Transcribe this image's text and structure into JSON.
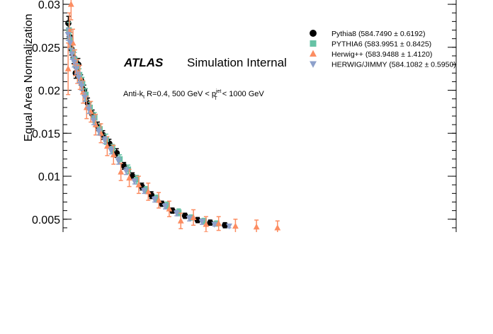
{
  "chart_data": {
    "type": "scatter",
    "title": "",
    "experiment": "ATLAS",
    "experiment_status": "Simulation Internal",
    "selection_label": {
      "main": "Anti-k",
      "main_sub": "t",
      "mid": " R=0.4, 500 GeV < p",
      "p_sup": "jet",
      "p_sub": "T",
      "tail": " < 1000 GeV"
    },
    "xlabel": "",
    "ylabel": "Equal Area Normalization",
    "ylim": [
      0.0035,
      0.0305
    ],
    "y_ticks": [
      0.005,
      0.01,
      0.015,
      0.02,
      0.025,
      0.03
    ],
    "y_tick_labels": [
      "0.005",
      "0.01",
      "0.015",
      "0.02",
      "0.025",
      "0.03"
    ],
    "legend_position": "top-right",
    "legend": [
      {
        "label": "Pythia8 (584.7490 ± 0.6192)",
        "marker": "circle",
        "color": "#000000"
      },
      {
        "label": "PYTHIA6 (583.9951 ± 0.8425)",
        "marker": "square",
        "color": "#66c2a5"
      },
      {
        "label": "Herwig++ (583.9488 ± 1.4120)",
        "marker": "triangle-up",
        "color": "#fc8d62"
      },
      {
        "label": "HERWIG/JIMMY (584.1082 ± 0.5950)",
        "marker": "triangle-down",
        "color": "#8da0cb"
      }
    ],
    "series": [
      {
        "name": "Pythia8 (584.7490 ± 0.6192)",
        "color": "#000000",
        "marker": "circle",
        "x": [
          0.5,
          1.2,
          2.0,
          3.0,
          4.0,
          5.2,
          6.5,
          8.0,
          9.8,
          12.0,
          14.5,
          17.0,
          20.0,
          23.5,
          27.0,
          31.0,
          35.5,
          40.0,
          45.0,
          50.0,
          56.0,
          62.0,
          68.0,
          75.0
        ],
        "y": [
          0.0278,
          0.0262,
          0.0248,
          0.0238,
          0.022,
          0.023,
          0.0212,
          0.02,
          0.0185,
          0.0172,
          0.0158,
          0.0148,
          0.0138,
          0.0127,
          0.0112,
          0.01,
          0.0088,
          0.0078,
          0.0068,
          0.006,
          0.0054,
          0.0049,
          0.0046,
          0.0043
        ],
        "err": [
          0.0008,
          0.0008,
          0.0007,
          0.0007,
          0.0006,
          0.0007,
          0.0006,
          0.0006,
          0.0006,
          0.0005,
          0.0005,
          0.0005,
          0.0005,
          0.0005,
          0.0004,
          0.0004,
          0.0004,
          0.0004,
          0.0003,
          0.0003,
          0.0003,
          0.0003,
          0.0003,
          0.0003
        ]
      },
      {
        "name": "PYTHIA6 (583.9951 ± 0.8425)",
        "color": "#66c2a5",
        "marker": "square",
        "x": [
          0.8,
          1.6,
          2.5,
          3.5,
          4.6,
          5.8,
          7.2,
          8.8,
          10.8,
          13.0,
          15.5,
          18.5,
          21.5,
          25.0,
          29.0,
          33.0,
          37.5,
          42.5,
          47.5,
          53.0,
          59.0,
          65.0,
          71.0
        ],
        "y": [
          0.027,
          0.0258,
          0.0245,
          0.0236,
          0.0228,
          0.0218,
          0.0208,
          0.0195,
          0.018,
          0.0168,
          0.0155,
          0.0143,
          0.0132,
          0.012,
          0.0108,
          0.0096,
          0.0084,
          0.0074,
          0.0066,
          0.0058,
          0.0052,
          0.0048,
          0.0045
        ],
        "err": [
          0.0009,
          0.0009,
          0.0008,
          0.0008,
          0.0007,
          0.0007,
          0.0007,
          0.0007,
          0.0006,
          0.0006,
          0.0006,
          0.0006,
          0.0005,
          0.0005,
          0.0005,
          0.0005,
          0.0004,
          0.0004,
          0.0004,
          0.0004,
          0.0003,
          0.0003,
          0.0003
        ]
      },
      {
        "name": "Herwig++ (583.9488 ± 1.4120)",
        "color": "#fc8d62",
        "marker": "triangle-up",
        "x": [
          0.4,
          1.0,
          1.8,
          2.7,
          3.7,
          4.8,
          6.0,
          7.5,
          9.2,
          11.2,
          13.5,
          16.0,
          19.0,
          22.0,
          25.5,
          29.5,
          34.0,
          38.5,
          43.5,
          48.5,
          54.0,
          60.0,
          66.0,
          72.0,
          80.0,
          90.0,
          100.0
        ],
        "y": [
          0.0225,
          0.027,
          0.03,
          0.0255,
          0.0232,
          0.0222,
          0.0215,
          0.0198,
          0.018,
          0.0175,
          0.016,
          0.015,
          0.0135,
          0.0125,
          0.0105,
          0.0098,
          0.009,
          0.0082,
          0.0072,
          0.0062,
          0.0048,
          0.0052,
          0.0044,
          0.0045,
          0.0042,
          0.0041,
          0.004
        ],
        "err": [
          0.003,
          0.002,
          0.0018,
          0.0016,
          0.0015,
          0.0014,
          0.0014,
          0.0013,
          0.0013,
          0.0012,
          0.0012,
          0.0011,
          0.0011,
          0.0011,
          0.001,
          0.001,
          0.001,
          0.001,
          0.0009,
          0.0009,
          0.0009,
          0.0009,
          0.0009,
          0.0008,
          0.0008,
          0.0008,
          0.0008
        ]
      },
      {
        "name": "HERWIG/JIMMY (584.1082 ± 0.5950)",
        "color": "#8da0cb",
        "marker": "triangle-down",
        "x": [
          0.3,
          1.4,
          2.2,
          3.2,
          4.3,
          5.5,
          6.8,
          8.3,
          10.2,
          12.5,
          15.0,
          17.8,
          20.8,
          24.3,
          28.0,
          32.0,
          36.5,
          41.5,
          46.5,
          52.0,
          58.0,
          64.0,
          70.0,
          77.0
        ],
        "y": [
          0.0265,
          0.0255,
          0.0242,
          0.0233,
          0.0225,
          0.0215,
          0.0205,
          0.0192,
          0.0178,
          0.0165,
          0.0152,
          0.0142,
          0.013,
          0.0118,
          0.0106,
          0.0094,
          0.0083,
          0.0073,
          0.0065,
          0.0057,
          0.0051,
          0.0047,
          0.0044,
          0.0042
        ],
        "err": [
          0.0007,
          0.0007,
          0.0006,
          0.0006,
          0.0006,
          0.0006,
          0.0005,
          0.0005,
          0.0005,
          0.0005,
          0.0004,
          0.0004,
          0.0004,
          0.0004,
          0.0004,
          0.0003,
          0.0003,
          0.0003,
          0.0003,
          0.0003,
          0.0003,
          0.0003,
          0.0002,
          0.0002
        ]
      }
    ],
    "x_range": [
      0,
      185
    ],
    "grid": false
  }
}
